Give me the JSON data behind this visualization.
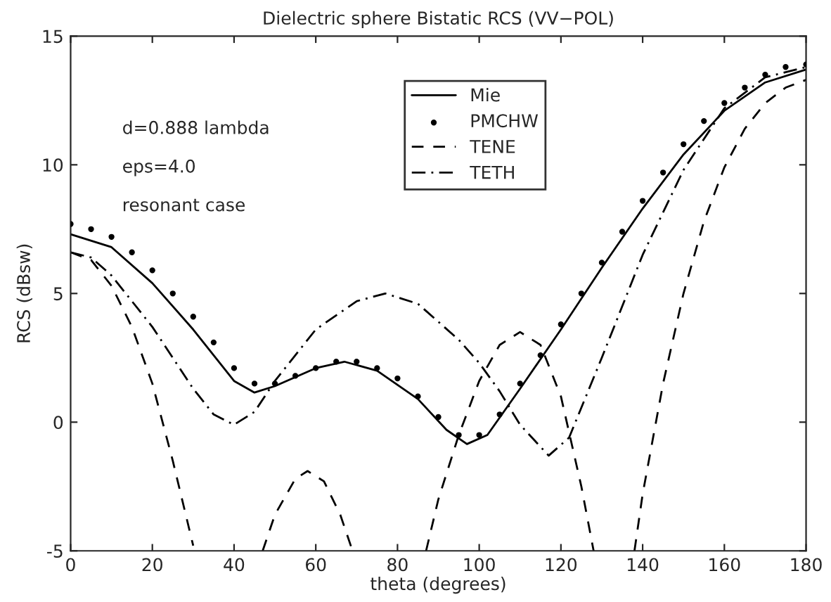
{
  "chart_data": {
    "type": "line",
    "title": "Dielectric sphere Bistatic RCS (VV−POL)",
    "xlabel": "theta (degrees)",
    "ylabel": "RCS (dBsw)",
    "annotations": [
      "d=0.888 lambda",
      "eps=4.0",
      "resonant case"
    ],
    "xlim": [
      0,
      180
    ],
    "xticks": [
      0,
      20,
      40,
      60,
      80,
      100,
      120,
      140,
      160,
      180
    ],
    "ylim": [
      -5,
      15
    ],
    "yticks": [
      -5,
      0,
      5,
      10,
      15
    ],
    "grid": false,
    "legend": "top",
    "series": [
      {
        "name": "Mie",
        "line_style": "solid",
        "color": "#000000",
        "x": [
          0,
          10,
          20,
          30,
          40,
          45,
          50,
          60,
          67,
          75,
          85,
          92,
          97,
          102,
          110,
          120,
          130,
          140,
          150,
          160,
          170,
          180
        ],
        "values": [
          7.3,
          6.8,
          5.4,
          3.6,
          1.6,
          1.15,
          1.4,
          2.1,
          2.35,
          2.0,
          0.9,
          -0.3,
          -0.85,
          -0.5,
          1.3,
          3.6,
          6.0,
          8.3,
          10.4,
          12.1,
          13.2,
          13.7
        ]
      },
      {
        "name": "PMCHW",
        "type": "scatter",
        "marker": "circle",
        "color": "#000000",
        "x": [
          0,
          5,
          10,
          15,
          20,
          25,
          30,
          35,
          40,
          45,
          50,
          55,
          60,
          65,
          70,
          75,
          80,
          85,
          90,
          95,
          100,
          105,
          110,
          115,
          120,
          125,
          130,
          135,
          140,
          145,
          150,
          155,
          160,
          165,
          170,
          175,
          180
        ],
        "values": [
          7.7,
          7.5,
          7.2,
          6.6,
          5.9,
          5.0,
          4.1,
          3.1,
          2.1,
          1.5,
          1.5,
          1.8,
          2.1,
          2.35,
          2.35,
          2.1,
          1.7,
          1.0,
          0.2,
          -0.5,
          -0.5,
          0.3,
          1.5,
          2.6,
          3.8,
          5.0,
          6.2,
          7.4,
          8.6,
          9.7,
          10.8,
          11.7,
          12.4,
          13.0,
          13.5,
          13.8,
          13.9
        ]
      },
      {
        "name": "TENE",
        "line_style": "dashed",
        "color": "#000000",
        "x": [
          0,
          5,
          10,
          15,
          20,
          25,
          30,
          38,
          47,
          50,
          55,
          58,
          62,
          66,
          69,
          78,
          87,
          90,
          95,
          100,
          105,
          110,
          115,
          120,
          125,
          128,
          133,
          138,
          140,
          145,
          150,
          155,
          160,
          165,
          170,
          175,
          180
        ],
        "values": [
          6.6,
          6.3,
          5.3,
          3.7,
          1.5,
          -1.5,
          -4.8,
          null,
          -5,
          -3.6,
          -2.2,
          -1.9,
          -2.3,
          -3.6,
          -5,
          null,
          -5,
          -3.0,
          -0.5,
          1.6,
          3.0,
          3.5,
          3.0,
          1.0,
          -2.5,
          -5,
          null,
          -5,
          -2.8,
          1.5,
          5.0,
          7.8,
          9.9,
          11.4,
          12.4,
          13.0,
          13.3
        ]
      },
      {
        "name": "TETH",
        "line_style": "dashdot",
        "color": "#000000",
        "x": [
          0,
          5,
          10,
          20,
          30,
          35,
          40,
          45,
          50,
          60,
          70,
          77,
          85,
          95,
          100,
          105,
          110,
          117,
          122,
          130,
          140,
          150,
          160,
          170,
          180
        ],
        "values": [
          6.6,
          6.4,
          5.7,
          3.7,
          1.3,
          0.3,
          -0.1,
          0.4,
          1.6,
          3.6,
          4.7,
          5.0,
          4.6,
          3.2,
          2.3,
          1.2,
          -0.1,
          -1.3,
          -0.6,
          2.5,
          6.5,
          9.8,
          12.2,
          13.4,
          13.8
        ]
      }
    ]
  }
}
